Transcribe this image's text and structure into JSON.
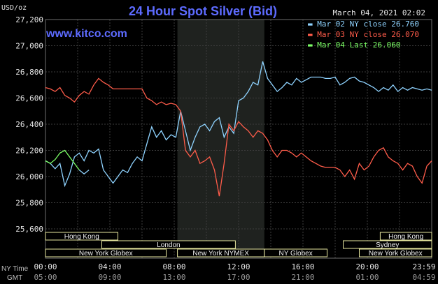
{
  "header": {
    "title": "24 Hour Spot Silver (Bid)",
    "site": "www.kitco.com",
    "timestamp": "March 04, 2021 02:02",
    "unit": "USD/oz"
  },
  "legend": [
    {
      "label": "Mar 02 NY close 26.760",
      "color": "#8fd3ff"
    },
    {
      "label": "Mar 03 NY close 26.070",
      "color": "#ff5c4a"
    },
    {
      "label": "Mar 04 Last 26.060",
      "color": "#7cff66"
    }
  ],
  "sessions": [
    {
      "label": "Hong Kong",
      "start": 0,
      "end": 4.5
    },
    {
      "label": "Hong Kong",
      "start": 20.8,
      "end": 24
    },
    {
      "label": "London",
      "start": 3.5,
      "end": 11.8
    },
    {
      "label": "Sydney",
      "start": 18.5,
      "end": 24
    },
    {
      "label": "New York Globex",
      "start": 0,
      "end": 7.5
    },
    {
      "label": "New York NYMEX",
      "start": 8.2,
      "end": 13.6
    },
    {
      "label": "NY Globex",
      "start": 13.6,
      "end": 17.5
    },
    {
      "label": "New York Globex",
      "start": 19.5,
      "end": 24
    }
  ],
  "time_rows": {
    "ny_label": "NY Time",
    "gmt_label": "GMT"
  },
  "chart_data": {
    "type": "line",
    "title": "24 Hour Spot Silver (Bid)",
    "ylabel": "USD/oz",
    "ylim": [
      25.6,
      27.2
    ],
    "yticks": [
      "25,600",
      "25,800",
      "26,000",
      "26,200",
      "26,400",
      "26,600",
      "26,800",
      "27,000",
      "27,200"
    ],
    "xlim": [
      0,
      24
    ],
    "xticks_ny": [
      "00:00",
      "04:00",
      "08:00",
      "12:00",
      "16:00",
      "20:00",
      "23:59"
    ],
    "xticks_gmt": [
      "05:00",
      "09:00",
      "13:00",
      "17:00",
      "21:00",
      "01:00",
      "04:59"
    ],
    "highlight_range": [
      8.2,
      13.6
    ],
    "grid": true,
    "legend_position": "top-right",
    "series": [
      {
        "name": "Mar 02 NY close 26.760",
        "color": "#8fd3ff",
        "x": [
          0,
          0.3,
          0.6,
          0.9,
          1.2,
          1.5,
          1.8,
          2.1,
          2.4,
          2.7,
          3.0,
          3.3,
          3.6,
          3.9,
          4.2,
          4.5,
          4.8,
          5.1,
          5.4,
          5.7,
          6.0,
          6.3,
          6.6,
          6.9,
          7.2,
          7.5,
          7.8,
          8.1,
          8.4,
          8.7,
          9.0,
          9.3,
          9.6,
          9.9,
          10.2,
          10.5,
          10.8,
          11.1,
          11.4,
          11.7,
          12.0,
          12.3,
          12.6,
          12.9,
          13.2,
          13.5,
          13.8,
          14.1,
          14.4,
          14.7,
          15.0,
          15.3,
          15.6,
          15.9,
          16.2,
          16.5,
          16.8,
          17.1,
          17.4,
          17.7,
          18.0,
          18.3,
          18.6,
          18.9,
          19.2,
          19.5,
          19.8,
          20.1,
          20.4,
          20.7,
          21.0,
          21.3,
          21.6,
          21.9,
          22.2,
          22.5,
          22.8,
          23.1,
          23.4,
          23.7,
          24.0
        ],
        "y": [
          26.12,
          26.1,
          26.06,
          26.1,
          25.93,
          26.02,
          26.15,
          26.18,
          26.12,
          26.2,
          26.18,
          26.21,
          26.05,
          26.0,
          25.95,
          26.0,
          26.05,
          26.03,
          26.1,
          26.15,
          26.12,
          26.25,
          26.38,
          26.3,
          26.35,
          26.28,
          26.32,
          26.3,
          26.5,
          26.35,
          26.2,
          26.3,
          26.38,
          26.4,
          26.35,
          26.42,
          26.45,
          26.3,
          26.38,
          26.33,
          26.58,
          26.6,
          26.65,
          26.72,
          26.7,
          26.88,
          26.75,
          26.7,
          26.65,
          26.68,
          26.72,
          26.7,
          26.75,
          26.72,
          26.74,
          26.76,
          26.76,
          26.76,
          26.75,
          26.75,
          26.76,
          26.7,
          26.72,
          26.75,
          26.76,
          26.73,
          26.72,
          26.7,
          26.68,
          26.65,
          26.68,
          26.66,
          26.7,
          26.65,
          26.68,
          26.66,
          26.68,
          26.67,
          26.66,
          26.67,
          26.66
        ]
      },
      {
        "name": "Mar 03 NY close 26.070",
        "color": "#ff5c4a",
        "x": [
          0,
          0.3,
          0.6,
          0.9,
          1.2,
          1.5,
          1.8,
          2.1,
          2.4,
          2.7,
          3.0,
          3.3,
          3.6,
          3.9,
          4.2,
          4.5,
          4.8,
          5.1,
          5.4,
          5.7,
          6.0,
          6.3,
          6.6,
          6.9,
          7.2,
          7.5,
          7.8,
          8.1,
          8.4,
          8.7,
          9.0,
          9.3,
          9.6,
          9.9,
          10.2,
          10.5,
          10.8,
          11.1,
          11.4,
          11.7,
          12.0,
          12.3,
          12.6,
          12.9,
          13.2,
          13.5,
          13.8,
          14.1,
          14.4,
          14.7,
          15.0,
          15.3,
          15.6,
          15.9,
          16.2,
          16.5,
          16.8,
          17.1,
          17.4,
          17.7,
          18.0,
          18.3,
          18.6,
          18.9,
          19.2,
          19.5,
          19.8,
          20.1,
          20.4,
          20.7,
          21.0,
          21.3,
          21.6,
          21.9,
          22.2,
          22.5,
          22.8,
          23.1,
          23.4,
          23.7,
          24.0
        ],
        "y": [
          26.68,
          26.67,
          26.65,
          26.68,
          26.62,
          26.6,
          26.57,
          26.62,
          26.65,
          26.63,
          26.7,
          26.75,
          26.72,
          26.7,
          26.67,
          26.67,
          26.67,
          26.67,
          26.67,
          26.67,
          26.67,
          26.6,
          26.58,
          26.55,
          26.57,
          26.55,
          26.56,
          26.55,
          26.5,
          26.2,
          26.15,
          26.2,
          26.1,
          26.12,
          26.15,
          26.05,
          25.85,
          26.1,
          26.4,
          26.35,
          26.42,
          26.38,
          26.35,
          26.3,
          26.35,
          26.33,
          26.28,
          26.2,
          26.15,
          26.2,
          26.2,
          26.18,
          26.15,
          26.18,
          26.15,
          26.12,
          26.1,
          26.08,
          26.07,
          26.07,
          26.07,
          26.05,
          26.0,
          26.05,
          25.98,
          26.1,
          26.05,
          26.08,
          26.15,
          26.2,
          26.22,
          26.15,
          26.12,
          26.1,
          26.05,
          26.1,
          26.08,
          26.0,
          25.95,
          26.08,
          26.12
        ]
      },
      {
        "name": "Mar 04 Last 26.060",
        "color": "#7cff66",
        "x": [
          0,
          0.3,
          0.6,
          0.9,
          1.2,
          1.5,
          1.8,
          2.1
        ],
        "y": [
          26.12,
          26.1,
          26.13,
          26.18,
          26.2,
          26.15,
          26.1,
          26.05
        ]
      },
      {
        "name": "",
        "color": "#8fd3ff",
        "x": [
          2.1,
          2.4,
          2.7
        ],
        "y": [
          26.05,
          26.02,
          26.05
        ]
      }
    ]
  }
}
